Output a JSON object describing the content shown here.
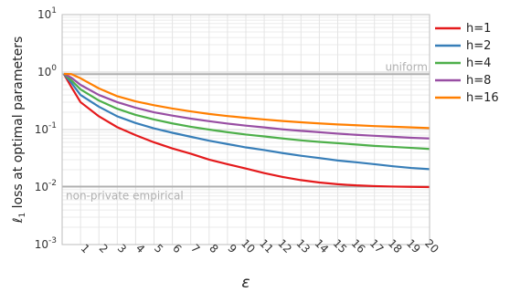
{
  "chart_data": {
    "type": "line",
    "xlabel": "ε",
    "ylabel": "ℓ₁ loss at optimal parameters",
    "ylabel_main": "ℓ",
    "ylabel_sub": "1",
    "ylabel_rest": " loss at optimal parameters",
    "y_scale": "log",
    "ylim": [
      0.001,
      10
    ],
    "xlim": [
      0,
      20
    ],
    "grid": true,
    "legend_position": "right-top",
    "x_ticks": [
      1,
      2,
      3,
      4,
      5,
      6,
      7,
      8,
      9,
      10,
      11,
      12,
      13,
      14,
      15,
      16,
      17,
      18,
      19,
      20
    ],
    "x_tick_labels": [
      "1",
      "2",
      "3",
      "4",
      "5",
      "6",
      "7",
      "8",
      "9",
      "10",
      "11",
      "12",
      "13",
      "14",
      "15",
      "16",
      "17",
      "18",
      "19",
      "20"
    ],
    "y_ticks": [
      {
        "value": 0.001,
        "base": "10",
        "exp": "-3"
      },
      {
        "value": 0.01,
        "base": "10",
        "exp": "-2"
      },
      {
        "value": 0.1,
        "base": "10",
        "exp": "-1"
      },
      {
        "value": 1,
        "base": "10",
        "exp": "0"
      },
      {
        "value": 10,
        "base": "10",
        "exp": "1"
      }
    ],
    "reference_lines": [
      {
        "label": "uniform",
        "value": 0.92,
        "color": "#b0b0b0"
      },
      {
        "label": "non-private empirical",
        "value": 0.0102,
        "color": "#b0b0b0"
      }
    ],
    "x": [
      0.1,
      0.5,
      1,
      2,
      3,
      4,
      5,
      6,
      7,
      8,
      9,
      10,
      11,
      12,
      13,
      14,
      15,
      16,
      17,
      18,
      19,
      20
    ],
    "series": [
      {
        "name": "h=1",
        "color": "#e41a1c",
        "values": [
          0.92,
          0.55,
          0.3,
          0.17,
          0.11,
          0.08,
          0.06,
          0.047,
          0.038,
          0.03,
          0.025,
          0.021,
          0.0175,
          0.015,
          0.0132,
          0.012,
          0.0112,
          0.0107,
          0.0104,
          0.0102,
          0.0101,
          0.01
        ]
      },
      {
        "name": "h=2",
        "color": "#377eb8",
        "values": [
          0.92,
          0.65,
          0.4,
          0.25,
          0.17,
          0.13,
          0.105,
          0.088,
          0.075,
          0.064,
          0.056,
          0.049,
          0.044,
          0.039,
          0.035,
          0.032,
          0.029,
          0.027,
          0.025,
          0.023,
          0.0215,
          0.0205
        ]
      },
      {
        "name": "h=4",
        "color": "#4daf4a",
        "values": [
          0.93,
          0.72,
          0.5,
          0.32,
          0.23,
          0.18,
          0.15,
          0.128,
          0.112,
          0.1,
          0.09,
          0.082,
          0.076,
          0.07,
          0.065,
          0.061,
          0.058,
          0.055,
          0.052,
          0.05,
          0.048,
          0.046
        ]
      },
      {
        "name": "h=8",
        "color": "#984ea3",
        "values": [
          0.93,
          0.8,
          0.6,
          0.4,
          0.3,
          0.24,
          0.2,
          0.175,
          0.155,
          0.14,
          0.127,
          0.117,
          0.109,
          0.101,
          0.095,
          0.09,
          0.085,
          0.081,
          0.078,
          0.075,
          0.072,
          0.07
        ]
      },
      {
        "name": "h=16",
        "color": "#ff7f00",
        "values": [
          0.93,
          0.92,
          0.78,
          0.52,
          0.38,
          0.31,
          0.265,
          0.232,
          0.207,
          0.187,
          0.172,
          0.16,
          0.15,
          0.141,
          0.134,
          0.128,
          0.123,
          0.119,
          0.115,
          0.112,
          0.109,
          0.106
        ]
      }
    ]
  }
}
